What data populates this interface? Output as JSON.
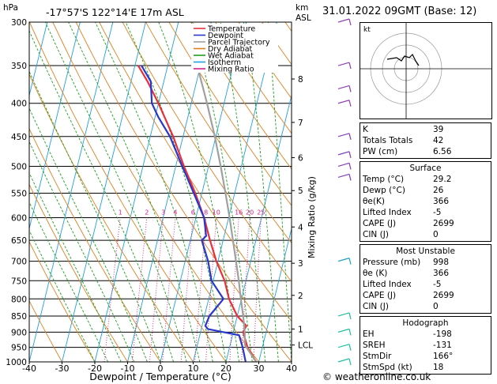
{
  "header": {
    "hpa_label": "hPa",
    "location": "-17°57'S  122°14'E  17m  ASL",
    "km_label": "km",
    "asl_label": "ASL",
    "date": "31.01.2022  09GMT  (Base: 12)"
  },
  "legend": [
    {
      "label": "Temperature",
      "color": "#e8303a"
    },
    {
      "label": "Dewpoint",
      "color": "#2a36cc"
    },
    {
      "label": "Parcel Trajectory",
      "color": "#a0a0a0"
    },
    {
      "label": "Dry Adiabat",
      "color": "#e08020"
    },
    {
      "label": "Wet Adiabat",
      "color": "#20a020"
    },
    {
      "label": "Isotherm",
      "color": "#20a0e0"
    },
    {
      "label": "Mixing Ratio",
      "color": "#d0208a"
    }
  ],
  "chart_data": {
    "type": "line",
    "title": "-17°57'S  122°14'E  17m  ASL",
    "xlabel": "Dewpoint / Temperature (°C)",
    "ylabel": "hPa",
    "y2label": "Mixing Ratio (g/kg)",
    "xlim": [
      -40,
      40
    ],
    "ylim": [
      1000,
      300
    ],
    "x_ticks": [
      -40,
      -30,
      -20,
      -10,
      0,
      10,
      20,
      30,
      40
    ],
    "pressure_ticks": [
      300,
      350,
      400,
      450,
      500,
      550,
      600,
      650,
      700,
      750,
      800,
      850,
      900,
      950,
      1000
    ],
    "km_ticks": [
      {
        "p": 367,
        "label": "8"
      },
      {
        "p": 428,
        "label": "7"
      },
      {
        "p": 485,
        "label": "6"
      },
      {
        "p": 545,
        "label": "5"
      },
      {
        "p": 620,
        "label": "4"
      },
      {
        "p": 705,
        "label": "3"
      },
      {
        "p": 790,
        "label": "2"
      },
      {
        "p": 890,
        "label": "1"
      },
      {
        "p": 942,
        "label": "LCL"
      }
    ],
    "mixing_ratio_labels": [
      "1",
      "2",
      "3",
      "4",
      "6",
      "8",
      "10",
      "16",
      "20",
      "25"
    ],
    "mixing_ratio_values": [
      1,
      2,
      3,
      4,
      6,
      8,
      10,
      16,
      20,
      25
    ],
    "series": [
      {
        "name": "Temperature",
        "color": "#e8303a",
        "points": [
          [
            1000,
            29.2
          ],
          [
            950,
            25.5
          ],
          [
            900,
            23
          ],
          [
            880,
            23.5
          ],
          [
            850,
            20
          ],
          [
            800,
            16.2
          ],
          [
            750,
            13.5
          ],
          [
            700,
            9.5
          ],
          [
            650,
            6
          ],
          [
            600,
            2.5
          ],
          [
            550,
            -2
          ],
          [
            500,
            -7.5
          ],
          [
            450,
            -13
          ],
          [
            400,
            -20
          ],
          [
            370,
            -25
          ],
          [
            350,
            -29
          ]
        ]
      },
      {
        "name": "Dewpoint",
        "color": "#2a36cc",
        "points": [
          [
            1000,
            26
          ],
          [
            950,
            24
          ],
          [
            910,
            22
          ],
          [
            890,
            12
          ],
          [
            880,
            11
          ],
          [
            850,
            11.5
          ],
          [
            800,
            14.5
          ],
          [
            750,
            9.5
          ],
          [
            700,
            7
          ],
          [
            650,
            3.5
          ],
          [
            640,
            4.5
          ],
          [
            600,
            2.5
          ],
          [
            550,
            -2.5
          ],
          [
            500,
            -8
          ],
          [
            450,
            -14
          ],
          [
            420,
            -19
          ],
          [
            400,
            -22
          ],
          [
            370,
            -24
          ],
          [
            350,
            -28
          ]
        ]
      },
      {
        "name": "Parcel Trajectory",
        "color": "#a0a0a0",
        "points": [
          [
            1000,
            29.2
          ],
          [
            942,
            24.5
          ],
          [
            900,
            23.5
          ],
          [
            850,
            21.8
          ],
          [
            800,
            19.8
          ],
          [
            750,
            17.8
          ],
          [
            700,
            15.5
          ],
          [
            650,
            13
          ],
          [
            600,
            10.3
          ],
          [
            550,
            7.2
          ],
          [
            500,
            3.7
          ],
          [
            450,
            -0.3
          ],
          [
            400,
            -5.2
          ],
          [
            350,
            -11
          ]
        ]
      }
    ]
  },
  "hodograph": {
    "label": "kt"
  },
  "indices": [
    {
      "label": "K",
      "value": "39"
    },
    {
      "label": "Totals Totals",
      "value": "42"
    },
    {
      "label": "PW (cm)",
      "value": "6.56"
    }
  ],
  "surface": {
    "title": "Surface",
    "rows": [
      {
        "label": "Temp (°C)",
        "value": "29.2"
      },
      {
        "label": "Dewp (°C)",
        "value": "26"
      },
      {
        "label": "θe(K)",
        "value": "366"
      },
      {
        "label": "Lifted Index",
        "value": "-5"
      },
      {
        "label": "CAPE (J)",
        "value": "2699"
      },
      {
        "label": "CIN (J)",
        "value": "0"
      }
    ]
  },
  "most_unstable": {
    "title": "Most Unstable",
    "rows": [
      {
        "label": "Pressure (mb)",
        "value": "998"
      },
      {
        "label": "θe (K)",
        "value": "366"
      },
      {
        "label": "Lifted Index",
        "value": "-5"
      },
      {
        "label": "CAPE (J)",
        "value": "2699"
      },
      {
        "label": "CIN (J)",
        "value": "0"
      }
    ]
  },
  "hodograph_box": {
    "title": "Hodograph",
    "rows": [
      {
        "label": "EH",
        "value": "-198"
      },
      {
        "label": "SREH",
        "value": "-131"
      },
      {
        "label": "StmDir",
        "value": "166°"
      },
      {
        "label": "StmSpd (kt)",
        "value": "18"
      }
    ]
  },
  "footer": "© weatheronline.co.uk"
}
